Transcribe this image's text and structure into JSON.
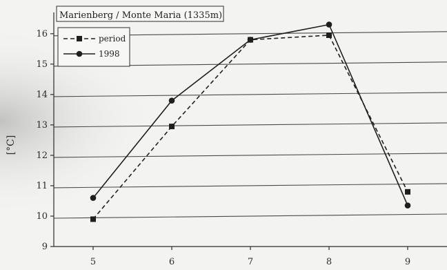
{
  "chart_data": {
    "type": "line",
    "title": "Marienberg / Monte Maria (1335m)",
    "ylabel": "[°C]",
    "xlabel": "",
    "x": [
      5,
      6,
      7,
      8,
      9
    ],
    "x_ticks": [
      "5",
      "6",
      "7",
      "8",
      "9"
    ],
    "y_ticks": [
      "9",
      "10",
      "11",
      "12",
      "13",
      "14",
      "15",
      "16"
    ],
    "xlim": [
      4.5,
      9.5
    ],
    "ylim": [
      9,
      16.7
    ],
    "grid": "horizontal",
    "legend_position": "top-left",
    "series": [
      {
        "name": "period",
        "style": "dashed",
        "marker": "square",
        "values": [
          9.9,
          12.95,
          15.8,
          15.95,
          10.8
        ]
      },
      {
        "name": "1998",
        "style": "solid",
        "marker": "circle",
        "values": [
          10.6,
          13.8,
          15.8,
          16.3,
          10.35
        ]
      }
    ]
  }
}
